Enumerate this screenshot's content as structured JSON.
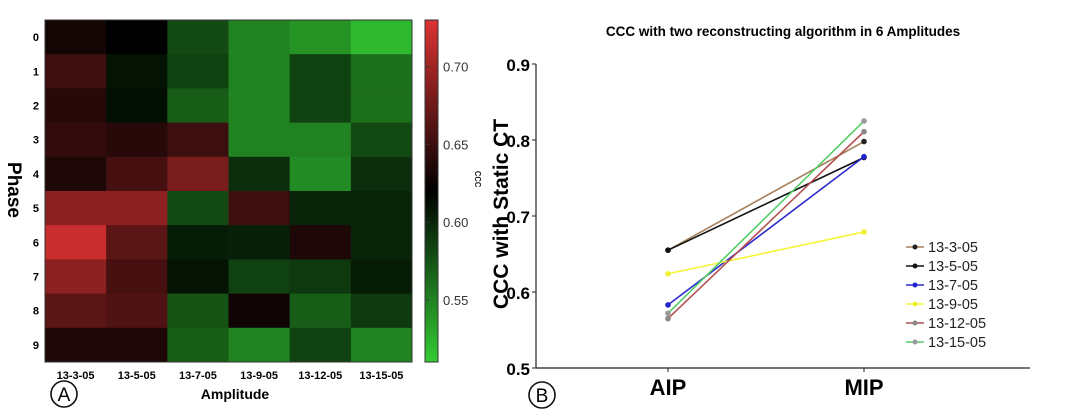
{
  "chart_data": [
    {
      "type": "heatmap",
      "panel_label": "A",
      "xlabel": "Amplitude",
      "ylabel": "Phase",
      "colorbar_label": "CCC",
      "colorbar_ticks": [
        "0.70",
        "0.65",
        "0.60",
        "0.55"
      ],
      "colorbar_range": [
        0.51,
        0.73
      ],
      "colormap": {
        "low": "#33cc33",
        "mid": "#000000",
        "high": "#dd3333",
        "mid_value": 0.62
      },
      "columns": [
        "13-3-05",
        "13-5-05",
        "13-7-05",
        "13-9-05",
        "13-12-05",
        "13-15-05"
      ],
      "rows": [
        "0",
        "1",
        "2",
        "3",
        "4",
        "5",
        "6",
        "7",
        "8",
        "9"
      ],
      "values": [
        [
          0.63,
          0.62,
          0.58,
          0.55,
          0.54,
          0.52
        ],
        [
          0.65,
          0.61,
          0.585,
          0.55,
          0.585,
          0.56
        ],
        [
          0.64,
          0.612,
          0.57,
          0.55,
          0.585,
          0.56
        ],
        [
          0.645,
          0.64,
          0.65,
          0.55,
          0.55,
          0.58
        ],
        [
          0.635,
          0.655,
          0.68,
          0.595,
          0.545,
          0.595
        ],
        [
          0.69,
          0.69,
          0.58,
          0.65,
          0.6,
          0.6
        ],
        [
          0.72,
          0.665,
          0.605,
          0.603,
          0.635,
          0.6
        ],
        [
          0.69,
          0.655,
          0.61,
          0.585,
          0.59,
          0.605
        ],
        [
          0.665,
          0.66,
          0.575,
          0.628,
          0.57,
          0.59
        ],
        [
          0.635,
          0.635,
          0.57,
          0.55,
          0.585,
          0.55
        ]
      ]
    },
    {
      "type": "line",
      "panel_label": "B",
      "title": "CCC with two reconstructing algorithm in 6 Amplitudes",
      "ylabel": "CCC with Static CT",
      "categories": [
        "AIP",
        "MIP"
      ],
      "ylim": [
        0.5,
        0.9
      ],
      "yticks": [
        "0.5",
        "0.6",
        "0.7",
        "0.8",
        "0.9"
      ],
      "legend_position": "right",
      "series": [
        {
          "name": "13-3-05",
          "values": [
            0.655,
            0.798
          ],
          "color": "#a5805a",
          "marker_color": "#222222"
        },
        {
          "name": "13-5-05",
          "values": [
            0.655,
            0.777
          ],
          "color": "#111111",
          "marker_color": "#111111"
        },
        {
          "name": "13-7-05",
          "values": [
            0.583,
            0.778
          ],
          "color": "#2a2acc",
          "marker_color": "#2222cc"
        },
        {
          "name": "13-9-05",
          "values": [
            0.624,
            0.679
          ],
          "color": "#f5f53a",
          "marker_color": "#f0f030"
        },
        {
          "name": "13-12-05",
          "values": [
            0.565,
            0.811
          ],
          "color": "#b45050",
          "marker_color": "#888888"
        },
        {
          "name": "13-15-05",
          "values": [
            0.572,
            0.825
          ],
          "color": "#55cc66",
          "marker_color": "#999999"
        }
      ]
    }
  ]
}
